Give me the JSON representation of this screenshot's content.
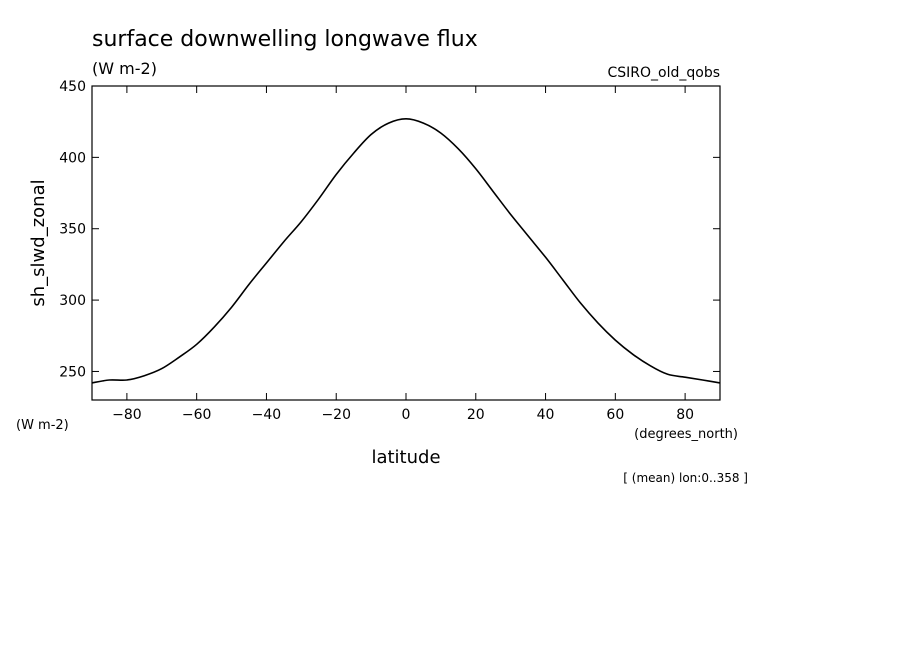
{
  "chart_data": {
    "type": "line",
    "title": "surface downwelling longwave flux",
    "units_label": "(W m-2)",
    "model_label": "CSIRO_old_qobs",
    "ylabel": "sh_slwd_zonal",
    "y_units": "(W m-2)",
    "xlabel": "latitude",
    "x_units": "(degrees_north)",
    "note": "[ (mean) lon:0..358 ]",
    "xlim": [
      -90,
      90
    ],
    "ylim": [
      230,
      450
    ],
    "xticks": [
      -80,
      -60,
      -40,
      -20,
      0,
      20,
      40,
      60,
      80
    ],
    "yticks": [
      250,
      300,
      350,
      400,
      450
    ],
    "grid": false,
    "series": [
      {
        "x": [
          -90,
          -85,
          -80,
          -75,
          -70,
          -65,
          -60,
          -55,
          -50,
          -45,
          -40,
          -35,
          -30,
          -25,
          -20,
          -15,
          -10,
          -5,
          0,
          5,
          10,
          15,
          20,
          25,
          30,
          35,
          40,
          45,
          50,
          55,
          60,
          65,
          70,
          75,
          80,
          85,
          90
        ],
        "y": [
          242,
          244,
          244,
          247,
          252,
          260,
          269,
          281,
          295,
          311,
          326,
          341,
          355,
          371,
          388,
          403,
          416,
          424,
          427,
          424,
          417,
          406,
          392,
          376,
          360,
          345,
          330,
          314,
          298,
          284,
          272,
          262,
          254,
          248,
          246,
          244,
          242
        ]
      }
    ]
  }
}
